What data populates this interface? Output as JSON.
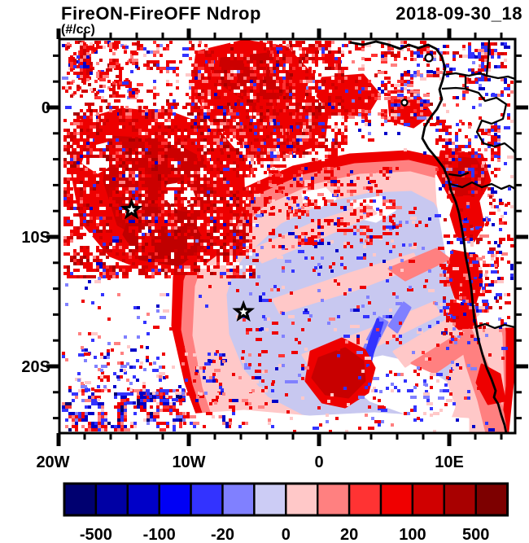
{
  "header": {
    "title": "FireON-FireOFF Ndrop",
    "timestamp": "2018-09-30_18",
    "units": "(#/cc)"
  },
  "chart_data": {
    "type": "heatmap",
    "title": "FireON-FireOFF Ndrop",
    "time_label": "2018-09-30_18",
    "units_label": "(#/cc)",
    "projection": "cylindrical latitude-longitude map, SE Atlantic / western Africa",
    "x_axis": {
      "tick_labels": [
        "20W",
        "10W",
        "0",
        "10E"
      ],
      "tick_lons": [
        -20,
        -10,
        0,
        10
      ],
      "range_lon": [
        -20,
        15
      ],
      "minor_tick_step_deg": 2
    },
    "y_axis": {
      "tick_labels": [
        "0",
        "10S",
        "20S"
      ],
      "tick_lats": [
        0,
        -10,
        -20
      ],
      "range_lat": [
        5.3,
        -25.2
      ],
      "minor_tick_step_deg": 2
    },
    "colorbar": {
      "levels": [
        -500,
        -200,
        -100,
        -50,
        -20,
        -10,
        0,
        10,
        20,
        50,
        100,
        200,
        500
      ],
      "labeled_levels": [
        "-500",
        "-100",
        "-20",
        "0",
        "20",
        "100",
        "500"
      ],
      "labeled_boundary_indices": [
        1,
        3,
        5,
        7,
        9,
        11,
        13
      ],
      "colors": [
        "#000070",
        "#0000A4",
        "#0000C8",
        "#0000F5",
        "#3333FF",
        "#8080FF",
        "#CCCCF5",
        "#FFC8C8",
        "#FF8080",
        "#FF3333",
        "#F00000",
        "#D00000",
        "#A80000",
        "#7D0000"
      ]
    },
    "markers": [
      {
        "shape": "star",
        "lon": -14.4,
        "lat": -7.9
      },
      {
        "shape": "star",
        "lon": -5.8,
        "lat": -15.8
      }
    ],
    "field_summary": [
      "Dense positive (red, +100 to +500 #/cc) speckled plume over NW quadrant and along the equatorial band",
      "Smooth negative (light blue, -10 to -20 #/cc) stratocumulus deck in centre-south, ringed by +10/+20 pink and +50 salmon and +100 red arcs",
      "Dark red (+200/+500) patch near 6W,19S and red maxima hugging the Angola coast",
      "Mixed weak red/blue speckle near 20W,22S and scattered noise elsewhere"
    ]
  }
}
